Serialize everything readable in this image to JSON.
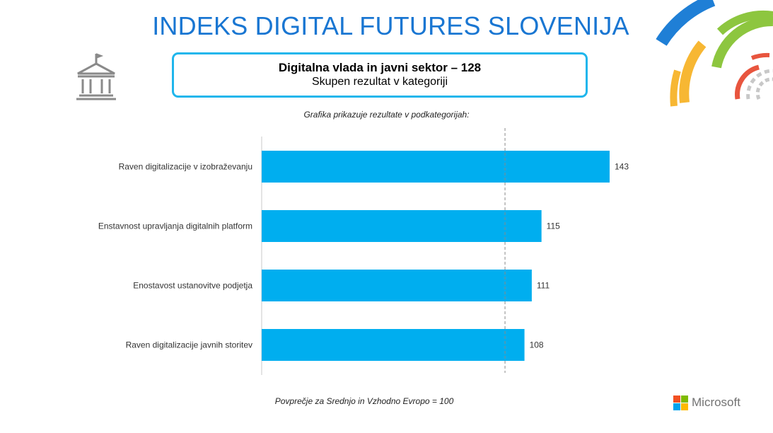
{
  "header": {
    "title": "INDEKS DIGITAL FUTURES SLOVENIJA",
    "category_title": "Digitalna vlada in javni sektor – 128",
    "category_subtitle": "Skupen rezultat v kategoriji",
    "chart_caption": "Grafika prikazuje rezultate v podkategorijah:"
  },
  "footer": {
    "footnote": "Povprečje za Srednjo in Vzhodno Evropo = 100",
    "brand": "Microsoft"
  },
  "icons": {
    "category": "government-building-icon",
    "brand": "microsoft-logo-icon",
    "decoration": "colored-arcs-decoration"
  },
  "colors": {
    "title": "#1976d2",
    "bar": "#00aeef",
    "box_border": "#1fb6ec"
  },
  "chart_data": {
    "type": "bar",
    "orientation": "horizontal",
    "categories": [
      "Raven digitalizacije v izobraževanju",
      "Enstavnost upravljanja digitalnih platform",
      "Enostavost ustanovitve podjetja",
      "Raven digitalizacije javnih storitev"
    ],
    "values": [
      143,
      115,
      111,
      108
    ],
    "data_labels": [
      "143",
      "115",
      "111",
      "108"
    ],
    "reference_line": 100,
    "xlim": [
      0,
      143
    ],
    "grid": false
  }
}
